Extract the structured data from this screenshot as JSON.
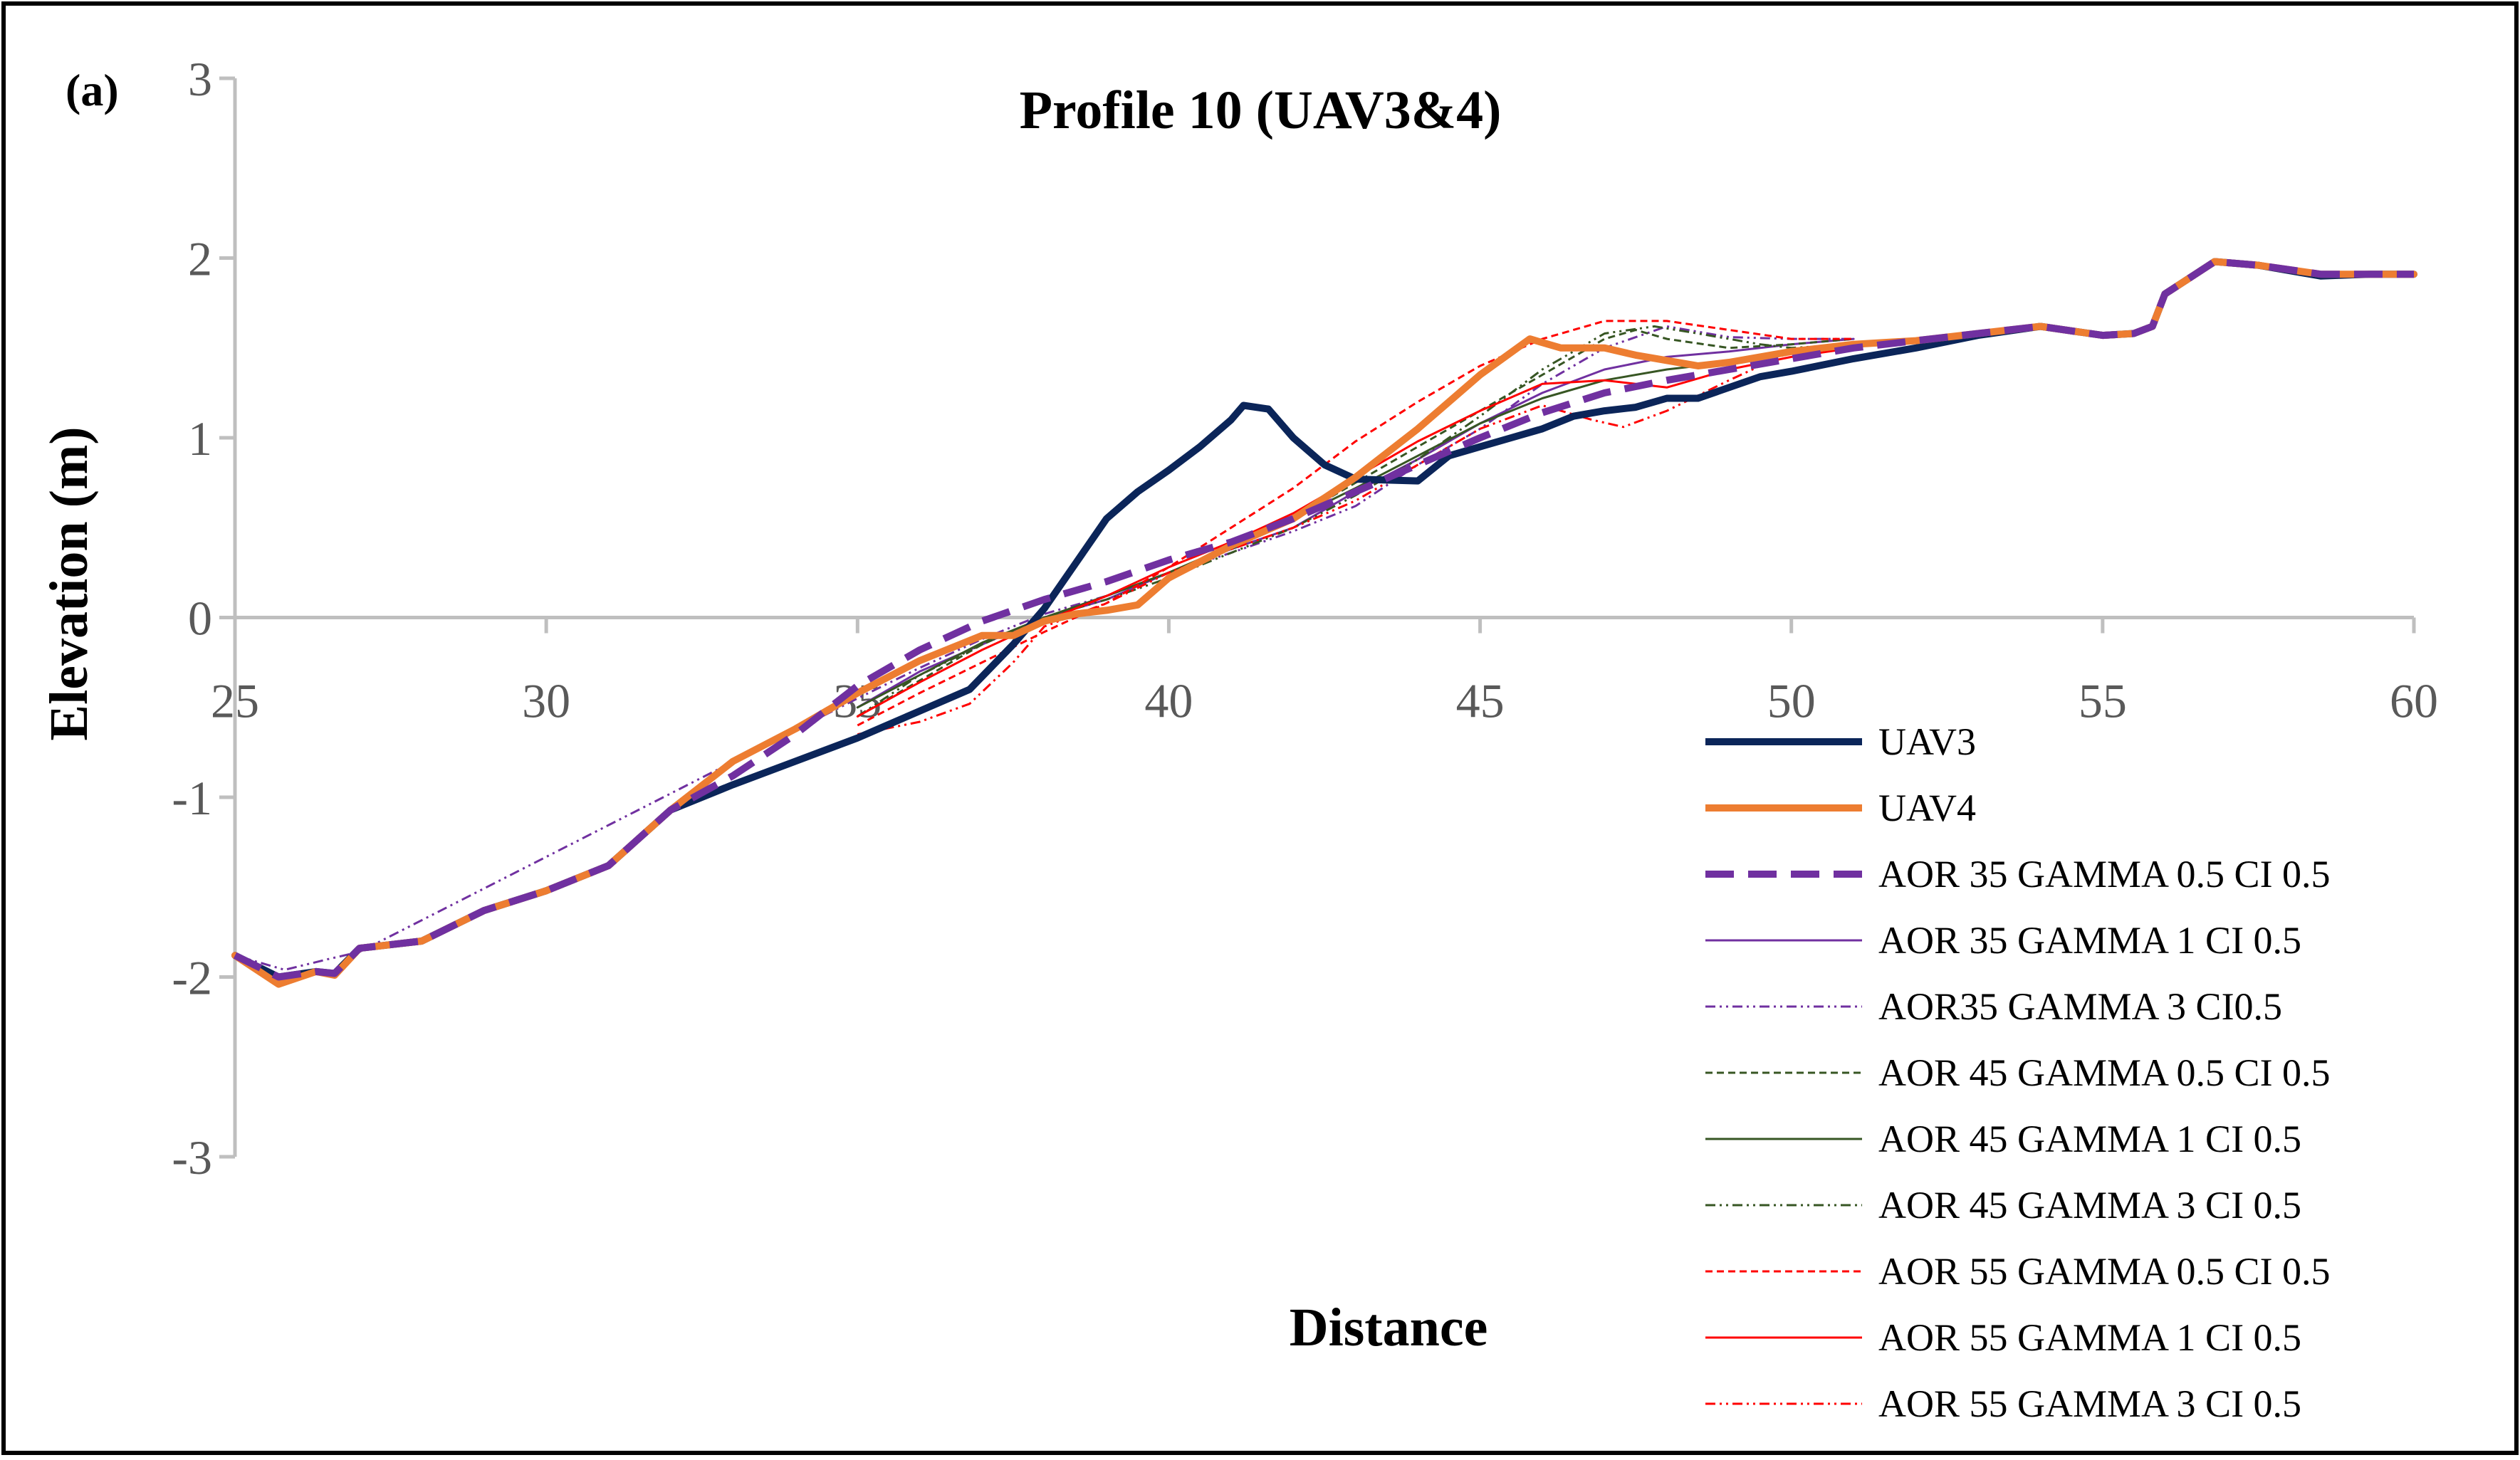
{
  "panel_label": "(a)",
  "chart_data": {
    "type": "line",
    "title": "Profile 10 (UAV3&4)",
    "xlabel": "Distance",
    "ylabel": "Elevation (m)",
    "xlim": [
      25,
      60
    ],
    "ylim": [
      -3,
      3
    ],
    "x_ticks": [
      25,
      30,
      35,
      40,
      45,
      50,
      55,
      60
    ],
    "y_ticks": [
      3,
      2,
      1,
      0,
      -1,
      -2,
      -3
    ],
    "x_tick_labels": [
      "25",
      "30",
      "35",
      "40",
      "45",
      "50",
      "55",
      "60"
    ],
    "y_tick_labels": [
      "3",
      "2",
      "1",
      "0",
      "-1",
      "-2",
      "-3"
    ],
    "legend_position": "right",
    "series": [
      {
        "name": "UAV3",
        "color": "#0b2559",
        "width": 10,
        "dash": "",
        "points": [
          [
            25,
            -1.88
          ],
          [
            25.7,
            -2.0
          ],
          [
            26.3,
            -1.97
          ],
          [
            26.6,
            -1.98
          ],
          [
            27,
            -1.84
          ],
          [
            28,
            -1.8
          ],
          [
            29,
            -1.63
          ],
          [
            30,
            -1.52
          ],
          [
            31,
            -1.38
          ],
          [
            32,
            -1.07
          ],
          [
            33,
            -0.93
          ],
          [
            34,
            -0.8
          ],
          [
            35,
            -0.67
          ],
          [
            36,
            -0.52
          ],
          [
            36.8,
            -0.4
          ],
          [
            37.5,
            -0.15
          ],
          [
            38,
            0.05
          ],
          [
            38.5,
            0.3
          ],
          [
            39,
            0.55
          ],
          [
            39.5,
            0.7
          ],
          [
            40,
            0.82
          ],
          [
            40.5,
            0.95
          ],
          [
            41,
            1.1
          ],
          [
            41.2,
            1.18
          ],
          [
            41.6,
            1.16
          ],
          [
            42,
            1.0
          ],
          [
            42.5,
            0.85
          ],
          [
            43,
            0.77
          ],
          [
            44,
            0.76
          ],
          [
            44.5,
            0.9
          ],
          [
            45,
            0.95
          ],
          [
            45.5,
            1.0
          ],
          [
            46,
            1.05
          ],
          [
            46.5,
            1.12
          ],
          [
            47,
            1.15
          ],
          [
            47.5,
            1.17
          ],
          [
            48,
            1.22
          ],
          [
            48.5,
            1.22
          ],
          [
            49,
            1.28
          ],
          [
            49.5,
            1.34
          ],
          [
            50,
            1.37
          ],
          [
            51,
            1.44
          ],
          [
            52,
            1.5
          ],
          [
            53,
            1.57
          ],
          [
            54,
            1.62
          ],
          [
            55,
            1.57
          ],
          [
            55.5,
            1.58
          ],
          [
            55.8,
            1.62
          ],
          [
            56,
            1.8
          ],
          [
            56.8,
            1.98
          ],
          [
            57.5,
            1.96
          ],
          [
            58.5,
            1.9
          ],
          [
            59.3,
            1.91
          ],
          [
            60,
            1.91
          ]
        ]
      },
      {
        "name": "UAV4",
        "color": "#ed7d31",
        "width": 10,
        "dash": "",
        "points": [
          [
            25,
            -1.88
          ],
          [
            25.7,
            -2.04
          ],
          [
            26.3,
            -1.97
          ],
          [
            26.6,
            -1.99
          ],
          [
            27,
            -1.84
          ],
          [
            28,
            -1.8
          ],
          [
            29,
            -1.63
          ],
          [
            30,
            -1.52
          ],
          [
            31,
            -1.38
          ],
          [
            32,
            -1.07
          ],
          [
            33,
            -0.8
          ],
          [
            34,
            -0.62
          ],
          [
            35,
            -0.42
          ],
          [
            36,
            -0.24
          ],
          [
            37,
            -0.1
          ],
          [
            37.5,
            -0.1
          ],
          [
            38,
            -0.02
          ],
          [
            38.5,
            0.02
          ],
          [
            39,
            0.04
          ],
          [
            39.5,
            0.07
          ],
          [
            40,
            0.22
          ],
          [
            41,
            0.4
          ],
          [
            42,
            0.55
          ],
          [
            43,
            0.78
          ],
          [
            44,
            1.05
          ],
          [
            45,
            1.35
          ],
          [
            45.8,
            1.55
          ],
          [
            46.3,
            1.5
          ],
          [
            47,
            1.5
          ],
          [
            47.5,
            1.46
          ],
          [
            48,
            1.43
          ],
          [
            48.5,
            1.4
          ],
          [
            49,
            1.42
          ],
          [
            50,
            1.48
          ],
          [
            51,
            1.52
          ],
          [
            52,
            1.54
          ],
          [
            53,
            1.58
          ],
          [
            54,
            1.62
          ],
          [
            55,
            1.57
          ],
          [
            55.5,
            1.58
          ],
          [
            55.8,
            1.62
          ],
          [
            56,
            1.8
          ],
          [
            56.8,
            1.98
          ],
          [
            57.5,
            1.96
          ],
          [
            58.5,
            1.91
          ],
          [
            59.3,
            1.91
          ],
          [
            60,
            1.91
          ]
        ]
      },
      {
        "name": "AOR 35 GAMMA 0.5 CI 0.5",
        "color": "#7030a0",
        "width": 10,
        "dash": "40,20",
        "points": [
          [
            25,
            -1.88
          ],
          [
            25.7,
            -2.0
          ],
          [
            26.3,
            -1.97
          ],
          [
            26.6,
            -1.98
          ],
          [
            27,
            -1.84
          ],
          [
            28,
            -1.8
          ],
          [
            29,
            -1.63
          ],
          [
            30,
            -1.52
          ],
          [
            31,
            -1.38
          ],
          [
            32,
            -1.07
          ],
          [
            33,
            -0.88
          ],
          [
            34,
            -0.65
          ],
          [
            35,
            -0.38
          ],
          [
            36,
            -0.18
          ],
          [
            37,
            -0.02
          ],
          [
            38,
            0.1
          ],
          [
            39,
            0.2
          ],
          [
            40,
            0.32
          ],
          [
            41,
            0.42
          ],
          [
            42,
            0.55
          ],
          [
            43,
            0.7
          ],
          [
            44,
            0.85
          ],
          [
            45,
            1.0
          ],
          [
            46,
            1.14
          ],
          [
            47,
            1.25
          ],
          [
            48,
            1.32
          ],
          [
            49,
            1.38
          ],
          [
            50,
            1.44
          ],
          [
            51,
            1.5
          ],
          [
            52,
            1.54
          ],
          [
            53,
            1.58
          ],
          [
            54,
            1.62
          ],
          [
            55,
            1.57
          ],
          [
            55.5,
            1.58
          ],
          [
            55.8,
            1.62
          ],
          [
            56,
            1.8
          ],
          [
            56.8,
            1.98
          ],
          [
            57.5,
            1.96
          ],
          [
            58.5,
            1.91
          ],
          [
            59.3,
            1.91
          ],
          [
            60,
            1.91
          ]
        ]
      },
      {
        "name": "AOR 35 GAMMA 1 CI 0.5",
        "color": "#7030a0",
        "width": 3,
        "dash": "",
        "points": [
          [
            35,
            -0.5
          ],
          [
            36,
            -0.3
          ],
          [
            37,
            -0.15
          ],
          [
            38,
            0.0
          ],
          [
            39,
            0.1
          ],
          [
            40,
            0.25
          ],
          [
            41,
            0.38
          ],
          [
            42,
            0.5
          ],
          [
            43,
            0.7
          ],
          [
            44,
            0.88
          ],
          [
            45,
            1.08
          ],
          [
            46,
            1.25
          ],
          [
            47,
            1.38
          ],
          [
            48,
            1.45
          ],
          [
            49,
            1.48
          ],
          [
            50,
            1.52
          ],
          [
            51,
            1.55
          ]
        ]
      },
      {
        "name": "AOR35 GAMMA 3 CI0.5",
        "color": "#7030a0",
        "width": 3,
        "dash": "14,6,3,6,3,6",
        "points": [
          [
            25,
            -1.88
          ],
          [
            25.8,
            -1.96
          ],
          [
            26.5,
            -1.9
          ],
          [
            27,
            -1.86
          ],
          [
            35,
            -0.45
          ],
          [
            36,
            -0.28
          ],
          [
            37,
            -0.12
          ],
          [
            38,
            0.02
          ],
          [
            39,
            0.12
          ],
          [
            40,
            0.25
          ],
          [
            41,
            0.36
          ],
          [
            42,
            0.48
          ],
          [
            43,
            0.62
          ],
          [
            44,
            0.85
          ],
          [
            45,
            1.05
          ],
          [
            46,
            1.3
          ],
          [
            47,
            1.5
          ],
          [
            48,
            1.62
          ],
          [
            49,
            1.56
          ],
          [
            50,
            1.55
          ],
          [
            51,
            1.55
          ]
        ]
      },
      {
        "name": "AOR 45 GAMMA 0.5 CI 0.5",
        "color": "#375623",
        "width": 3,
        "dash": "10,6",
        "points": [
          [
            35,
            -0.55
          ],
          [
            36,
            -0.35
          ],
          [
            37,
            -0.15
          ],
          [
            38,
            0.0
          ],
          [
            39,
            0.12
          ],
          [
            40,
            0.25
          ],
          [
            41,
            0.38
          ],
          [
            42,
            0.55
          ],
          [
            43,
            0.75
          ],
          [
            44,
            0.95
          ],
          [
            45,
            1.15
          ],
          [
            46,
            1.35
          ],
          [
            47,
            1.55
          ],
          [
            47.5,
            1.6
          ],
          [
            48,
            1.55
          ],
          [
            49,
            1.5
          ],
          [
            50,
            1.52
          ],
          [
            51,
            1.55
          ]
        ]
      },
      {
        "name": "AOR 45 GAMMA 1 CI 0.5",
        "color": "#375623",
        "width": 3,
        "dash": "",
        "points": [
          [
            35,
            -0.5
          ],
          [
            36,
            -0.32
          ],
          [
            37,
            -0.14
          ],
          [
            38,
            0.0
          ],
          [
            39,
            0.12
          ],
          [
            40,
            0.25
          ],
          [
            41,
            0.4
          ],
          [
            42,
            0.55
          ],
          [
            43,
            0.72
          ],
          [
            44,
            0.9
          ],
          [
            45,
            1.08
          ],
          [
            46,
            1.22
          ],
          [
            47,
            1.32
          ],
          [
            48,
            1.38
          ],
          [
            49,
            1.42
          ],
          [
            50,
            1.48
          ],
          [
            51,
            1.52
          ]
        ]
      },
      {
        "name": "AOR 45 GAMMA 3 CI 0.5",
        "color": "#375623",
        "width": 3,
        "dash": "14,6,3,6,3,6",
        "points": [
          [
            35,
            -0.55
          ],
          [
            36,
            -0.32
          ],
          [
            37,
            -0.15
          ],
          [
            38,
            0.0
          ],
          [
            39,
            0.1
          ],
          [
            40,
            0.22
          ],
          [
            41,
            0.36
          ],
          [
            42,
            0.5
          ],
          [
            43,
            0.68
          ],
          [
            44,
            0.88
          ],
          [
            45,
            1.12
          ],
          [
            46,
            1.38
          ],
          [
            47,
            1.58
          ],
          [
            47.8,
            1.62
          ],
          [
            48.5,
            1.58
          ],
          [
            49.5,
            1.52
          ],
          [
            50,
            1.5
          ],
          [
            51,
            1.52
          ]
        ]
      },
      {
        "name": "AOR 55 GAMMA 0.5 CI 0.5",
        "color": "#ff0000",
        "width": 3,
        "dash": "10,6",
        "points": [
          [
            35,
            -0.6
          ],
          [
            36,
            -0.42
          ],
          [
            37,
            -0.25
          ],
          [
            38,
            -0.08
          ],
          [
            39,
            0.08
          ],
          [
            40,
            0.28
          ],
          [
            41,
            0.5
          ],
          [
            42,
            0.72
          ],
          [
            43,
            0.98
          ],
          [
            44,
            1.2
          ],
          [
            45,
            1.4
          ],
          [
            46,
            1.55
          ],
          [
            47,
            1.65
          ],
          [
            48,
            1.65
          ],
          [
            49,
            1.6
          ],
          [
            50,
            1.55
          ],
          [
            51,
            1.55
          ]
        ]
      },
      {
        "name": "AOR 55 GAMMA 1 CI 0.5",
        "color": "#ff0000",
        "width": 3,
        "dash": "",
        "points": [
          [
            35,
            -0.55
          ],
          [
            36,
            -0.36
          ],
          [
            37,
            -0.18
          ],
          [
            38,
            -0.02
          ],
          [
            39,
            0.12
          ],
          [
            40,
            0.28
          ],
          [
            41,
            0.42
          ],
          [
            42,
            0.58
          ],
          [
            43,
            0.78
          ],
          [
            44,
            0.98
          ],
          [
            45,
            1.15
          ],
          [
            46,
            1.3
          ],
          [
            47,
            1.32
          ],
          [
            48,
            1.28
          ],
          [
            49,
            1.38
          ],
          [
            50,
            1.45
          ],
          [
            51,
            1.5
          ]
        ]
      },
      {
        "name": "AOR 55 GAMMA 3 CI 0.5",
        "color": "#ff0000",
        "width": 3,
        "dash": "14,6,3,6,3,6",
        "points": [
          [
            35,
            -0.65
          ],
          [
            36,
            -0.58
          ],
          [
            36.8,
            -0.48
          ],
          [
            37.5,
            -0.25
          ],
          [
            38,
            -0.05
          ],
          [
            39,
            0.08
          ],
          [
            40,
            0.25
          ],
          [
            41,
            0.38
          ],
          [
            42,
            0.5
          ],
          [
            43,
            0.65
          ],
          [
            44,
            0.85
          ],
          [
            45,
            1.05
          ],
          [
            46,
            1.18
          ],
          [
            46.8,
            1.1
          ],
          [
            47.3,
            1.06
          ],
          [
            48,
            1.15
          ],
          [
            49,
            1.32
          ],
          [
            50,
            1.48
          ],
          [
            51,
            1.52
          ]
        ]
      }
    ]
  }
}
